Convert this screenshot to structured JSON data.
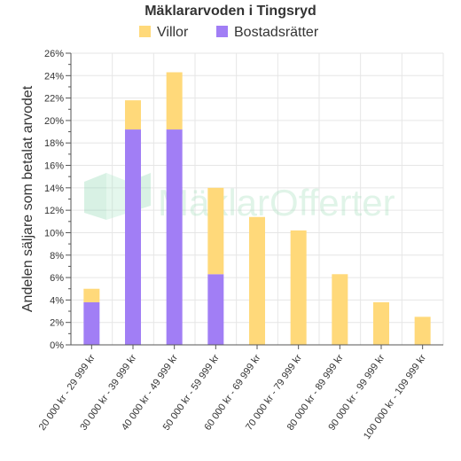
{
  "chart_data": {
    "type": "bar",
    "stacked": true,
    "title": "Mäklararvoden i Tingsryd",
    "ylabel": "Andelen säljare som betalat arvodet",
    "xlabel": "",
    "ylim": [
      0,
      26
    ],
    "y_tick_step": 2,
    "y_tick_suffix": "%",
    "legend_position": "top",
    "grid": true,
    "categories": [
      "20 000 kr - 29 999 kr",
      "30 000 kr - 39 999 kr",
      "40 000 kr - 49 999 kr",
      "50 000 kr - 59 999 kr",
      "60 000 kr - 69 999 kr",
      "70 000 kr - 79 999 kr",
      "80 000 kr - 89 999 kr",
      "90 000 kr - 99 999 kr",
      "100 000 kr - 109 999 kr"
    ],
    "series": [
      {
        "name": "Bostadsrätter",
        "color": "#a17ef5",
        "values": [
          3.8,
          19.2,
          19.2,
          6.3,
          0,
          0,
          0,
          0,
          0
        ]
      },
      {
        "name": "Villor",
        "color": "#ffd97a",
        "values": [
          1.2,
          2.6,
          5.1,
          7.7,
          11.4,
          10.2,
          6.3,
          3.8,
          2.5
        ]
      }
    ],
    "legend_order": [
      "Villor",
      "Bostadsrätter"
    ]
  },
  "watermark": {
    "text": "MäklarOfferter",
    "icon": "house-logo-icon"
  }
}
